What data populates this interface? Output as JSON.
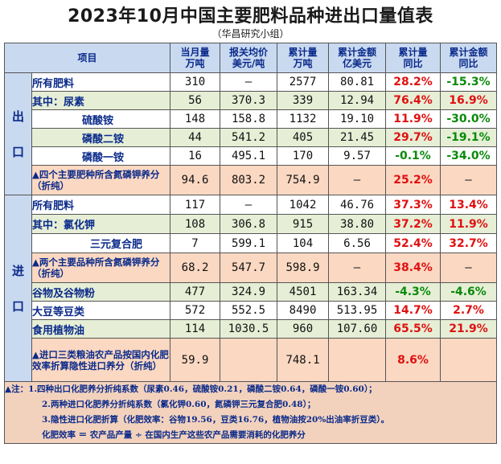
{
  "title": "2023年10月中国主要肥料品种进出口量值表",
  "subtitle": "（华昌研究小组）",
  "headers": {
    "item": "项目",
    "monthly_qty": [
      "当月量",
      "万吨"
    ],
    "unit_price": [
      "报关均价",
      "美元/吨"
    ],
    "cum_qty": [
      "累计量",
      "万吨"
    ],
    "cum_value": [
      "累计金额",
      "亿美元"
    ],
    "cum_qty_yoy": [
      "累计量",
      "同比"
    ],
    "cum_value_yoy": [
      "累计金额",
      "同比"
    ]
  },
  "export": {
    "section_label": [
      "出",
      "口"
    ],
    "rows": [
      {
        "name": "所有肥料",
        "monthly": "310",
        "price": "—",
        "cum_qty": "2577",
        "cum_value": "80.81",
        "qty_yoy": "28.2%",
        "value_yoy": "-15.3%"
      },
      {
        "name": "其中：尿素",
        "monthly": "56",
        "price": "370.3",
        "cum_qty": "339",
        "cum_value": "12.94",
        "qty_yoy": "76.4%",
        "value_yoy": "16.9%"
      },
      {
        "name": "硫酸铵",
        "monthly": "148",
        "price": "158.8",
        "cum_qty": "1132",
        "cum_value": "19.10",
        "qty_yoy": "11.9%",
        "value_yoy": "-30.0%"
      },
      {
        "name": "磷酸二铵",
        "monthly": "44",
        "price": "541.2",
        "cum_qty": "405",
        "cum_value": "21.45",
        "qty_yoy": "29.7%",
        "value_yoy": "-19.1%"
      },
      {
        "name": "磷酸一铵",
        "monthly": "16",
        "price": "495.1",
        "cum_qty": "170",
        "cum_value": "9.57",
        "qty_yoy": "-0.1%",
        "value_yoy": "-34.0%"
      },
      {
        "name": "▲四个主要肥种所含氮磷钾养分（折纯）",
        "monthly": "94.6",
        "price": "803.2",
        "cum_qty": "754.9",
        "cum_value": "—",
        "qty_yoy": "25.2%",
        "value_yoy": "—"
      }
    ]
  },
  "import": {
    "section_label": [
      "进",
      "口"
    ],
    "rows": [
      {
        "name": "所有肥料",
        "monthly": "117",
        "price": "—",
        "cum_qty": "1042",
        "cum_value": "46.76",
        "qty_yoy": "37.3%",
        "value_yoy": "13.4%"
      },
      {
        "name": "其中：氯化钾",
        "monthly": "108",
        "price": "306.8",
        "cum_qty": "915",
        "cum_value": "38.80",
        "qty_yoy": "37.2%",
        "value_yoy": "11.9%"
      },
      {
        "name": "三元复合肥",
        "monthly": "7",
        "price": "599.1",
        "cum_qty": "104",
        "cum_value": "6.56",
        "qty_yoy": "52.4%",
        "value_yoy": "32.7%"
      },
      {
        "name": "▲两个主要品种所含氮磷钾养分（折纯）",
        "monthly": "68.2",
        "price": "547.7",
        "cum_qty": "598.9",
        "cum_value": "—",
        "qty_yoy": "38.4%",
        "value_yoy": "—"
      },
      {
        "name": "谷物及谷物粉",
        "monthly": "477",
        "price": "324.9",
        "cum_qty": "4501",
        "cum_value": "163.34",
        "qty_yoy": "-4.3%",
        "value_yoy": "-4.6%"
      },
      {
        "name": "大豆等豆类",
        "monthly": "572",
        "price": "552.5",
        "cum_qty": "8490",
        "cum_value": "513.95",
        "qty_yoy": "14.7%",
        "value_yoy": "2.7%"
      },
      {
        "name": "食用植物油",
        "monthly": "114",
        "price": "1030.5",
        "cum_qty": "960",
        "cum_value": "107.60",
        "qty_yoy": "65.5%",
        "value_yoy": "21.9%"
      },
      {
        "name": "▲进口三类粮油农产品按国内化肥效率折算隐性进口养分（折纯）",
        "monthly": "59.9",
        "price": "",
        "cum_qty": "748.1",
        "cum_value": "",
        "qty_yoy": "8.6%",
        "value_yoy": ""
      }
    ]
  },
  "notes": [
    "▲注：1.四种出口化肥养分折纯系数（尿素0.46，硫酸铵0.21，磷酸二铵0.64，磷酸一铵0.60）；",
    "2.两种进口化肥养分折纯系数（氯化钾0.60，氮磷钾三元复合肥0.48）；",
    "3.隐性进口化肥折算（化肥效率：谷物19.56，豆类16.76，植物油按20%出油率折豆类）。",
    "化肥效率 ＝ 农产品产量 ÷ 在国内生产这些农产品需要消耗的化肥养分"
  ],
  "colors": {
    "header_bg": "#c9d9f0",
    "green_row": "#e6efd6",
    "peach_row": "#fbd8c2",
    "positive_red": "#e01010",
    "negative_green": "#0a8a0a",
    "label_blue": "#0a2a8a"
  }
}
